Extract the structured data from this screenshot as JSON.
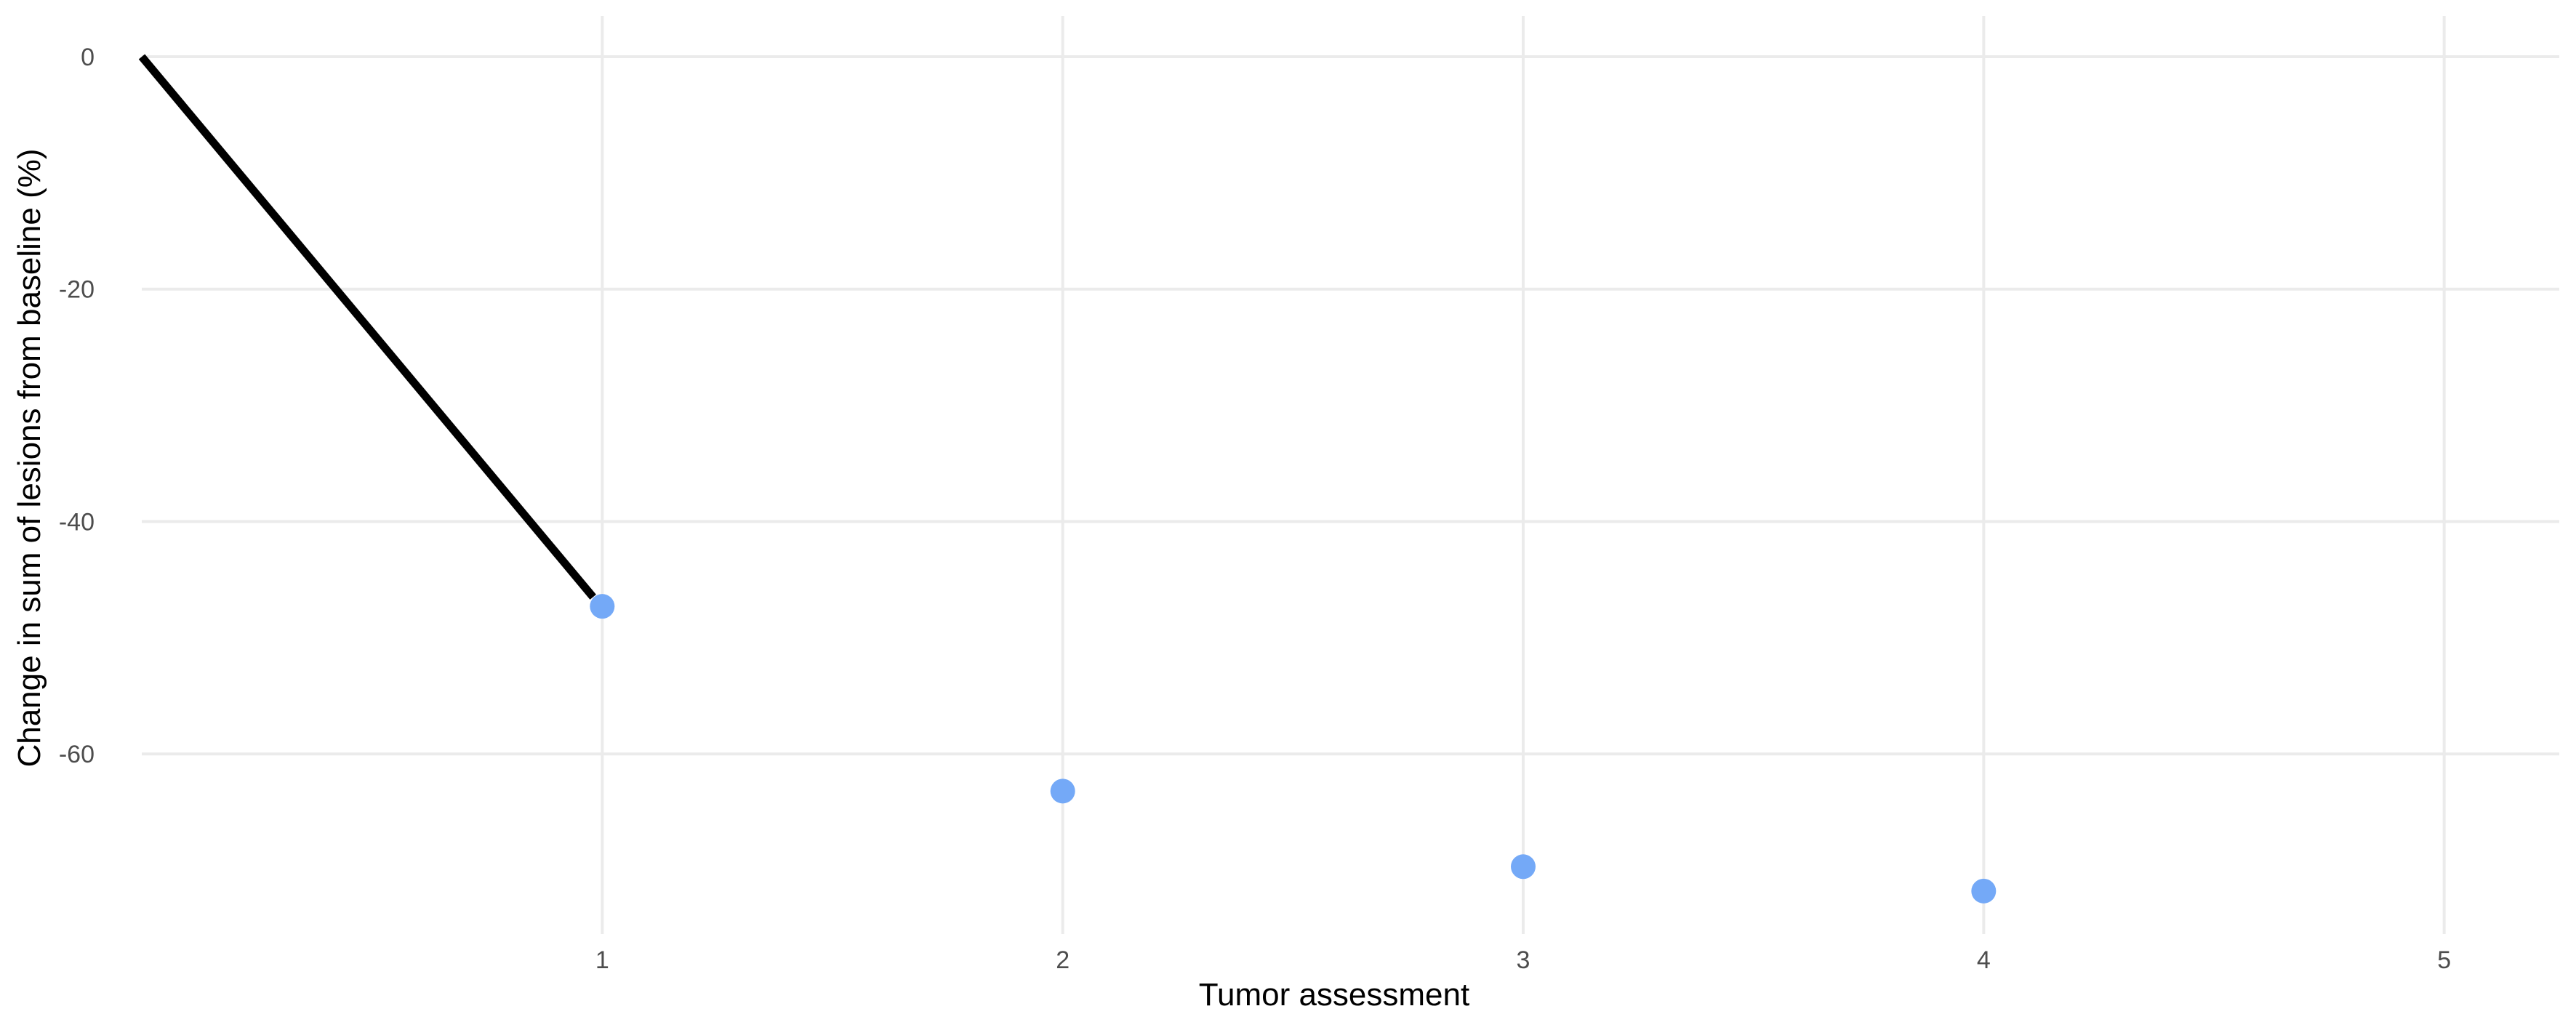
{
  "chart_data": {
    "type": "scatter",
    "title": "",
    "xlabel": "Tumor assessment",
    "ylabel": "Change in sum of lesions from baseline (%)",
    "xlim": [
      0,
      5.25
    ],
    "ylim": [
      -75.5,
      3.5
    ],
    "x_ticks": [
      1,
      2,
      3,
      4,
      5
    ],
    "y_ticks": [
      0,
      -20,
      -40,
      -60
    ],
    "grid": true,
    "legend": "none",
    "line_series": {
      "color": "#000000",
      "points": [
        {
          "x": 0,
          "y": 0
        },
        {
          "x": 0.98,
          "y": -46.5
        }
      ]
    },
    "point_series": {
      "color": "#74a9f7",
      "points": [
        {
          "x": 1,
          "y": -47.3
        },
        {
          "x": 2,
          "y": -63.2
        },
        {
          "x": 3,
          "y": -69.7
        },
        {
          "x": 4,
          "y": -71.8
        }
      ]
    }
  }
}
